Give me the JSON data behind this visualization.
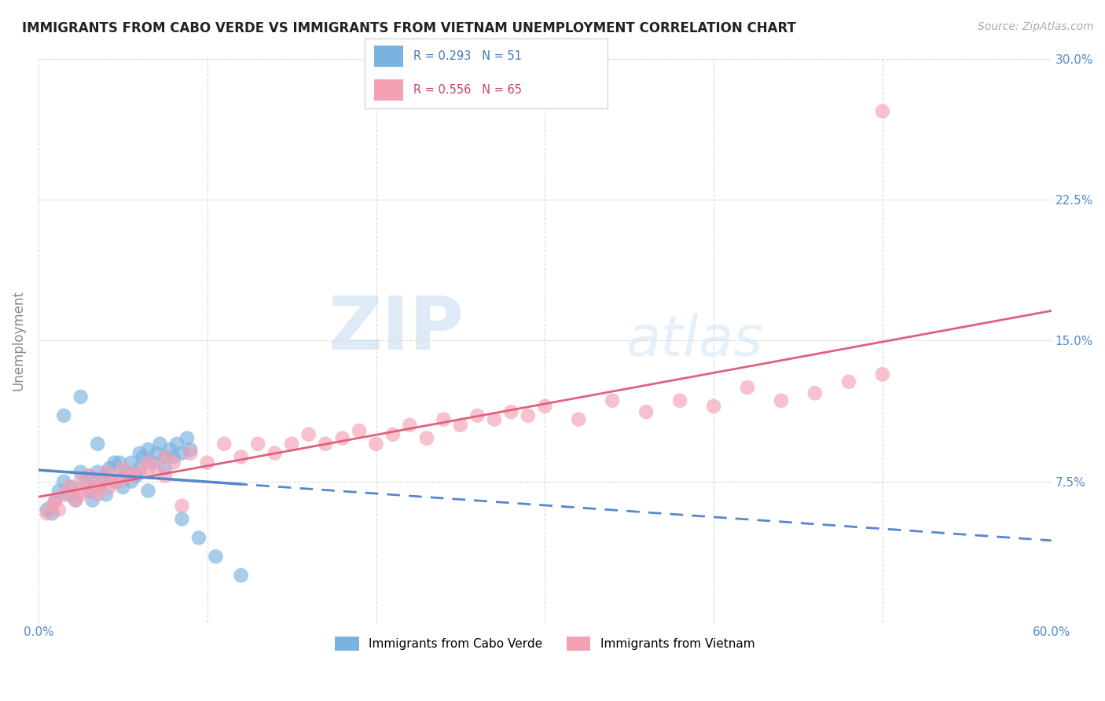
{
  "title": "IMMIGRANTS FROM CABO VERDE VS IMMIGRANTS FROM VIETNAM UNEMPLOYMENT CORRELATION CHART",
  "source_text": "Source: ZipAtlas.com",
  "ylabel": "Unemployment",
  "x_min": 0.0,
  "x_max": 0.6,
  "y_min": 0.0,
  "y_max": 0.3,
  "x_ticks": [
    0.0,
    0.1,
    0.2,
    0.3,
    0.4,
    0.5,
    0.6
  ],
  "x_tick_labels": [
    "0.0%",
    "",
    "",
    "",
    "",
    "",
    "60.0%"
  ],
  "y_ticks": [
    0.0,
    0.075,
    0.15,
    0.225,
    0.3
  ],
  "y_tick_labels_right": [
    "",
    "7.5%",
    "15.0%",
    "22.5%",
    "30.0%"
  ],
  "cabo_verde_color": "#7ab3e0",
  "vietnam_color": "#f4a0b5",
  "cabo_verde_line_color": "#5588cc",
  "vietnam_line_color": "#e06080",
  "cabo_verde_R": 0.293,
  "cabo_verde_N": 51,
  "vietnam_R": 0.556,
  "vietnam_N": 65,
  "legend_label_cabo": "Immigrants from Cabo Verde",
  "legend_label_vietnam": "Immigrants from Vietnam",
  "watermark_zip": "ZIP",
  "watermark_atlas": "atlas",
  "grid_color": "#cccccc",
  "background_color": "#ffffff",
  "tick_label_color": "#5588cc",
  "cabo_verde_scatter_x": [
    0.005,
    0.008,
    0.01,
    0.012,
    0.015,
    0.018,
    0.02,
    0.022,
    0.025,
    0.028,
    0.03,
    0.03,
    0.032,
    0.035,
    0.035,
    0.038,
    0.04,
    0.04,
    0.042,
    0.045,
    0.048,
    0.05,
    0.05,
    0.052,
    0.055,
    0.058,
    0.06,
    0.06,
    0.062,
    0.065,
    0.068,
    0.07,
    0.072,
    0.075,
    0.078,
    0.08,
    0.082,
    0.085,
    0.088,
    0.09,
    0.015,
    0.025,
    0.035,
    0.045,
    0.055,
    0.065,
    0.075,
    0.085,
    0.095,
    0.105,
    0.12
  ],
  "cabo_verde_scatter_y": [
    0.06,
    0.058,
    0.065,
    0.07,
    0.075,
    0.068,
    0.072,
    0.065,
    0.08,
    0.075,
    0.078,
    0.07,
    0.065,
    0.072,
    0.08,
    0.075,
    0.068,
    0.078,
    0.082,
    0.075,
    0.085,
    0.078,
    0.072,
    0.08,
    0.085,
    0.078,
    0.09,
    0.082,
    0.088,
    0.092,
    0.085,
    0.09,
    0.095,
    0.088,
    0.092,
    0.088,
    0.095,
    0.09,
    0.098,
    0.092,
    0.11,
    0.12,
    0.095,
    0.085,
    0.075,
    0.07,
    0.082,
    0.055,
    0.045,
    0.035,
    0.025
  ],
  "vietnam_scatter_x": [
    0.005,
    0.008,
    0.01,
    0.012,
    0.015,
    0.018,
    0.02,
    0.022,
    0.025,
    0.028,
    0.03,
    0.032,
    0.035,
    0.038,
    0.04,
    0.042,
    0.045,
    0.048,
    0.05,
    0.055,
    0.06,
    0.065,
    0.07,
    0.075,
    0.08,
    0.09,
    0.1,
    0.11,
    0.12,
    0.13,
    0.14,
    0.15,
    0.16,
    0.17,
    0.18,
    0.19,
    0.2,
    0.21,
    0.22,
    0.23,
    0.24,
    0.25,
    0.26,
    0.27,
    0.28,
    0.29,
    0.3,
    0.32,
    0.34,
    0.36,
    0.38,
    0.4,
    0.42,
    0.44,
    0.46,
    0.48,
    0.5,
    0.025,
    0.035,
    0.045,
    0.055,
    0.065,
    0.075,
    0.085,
    0.5
  ],
  "vietnam_scatter_y": [
    0.058,
    0.062,
    0.065,
    0.06,
    0.068,
    0.072,
    0.07,
    0.065,
    0.075,
    0.07,
    0.078,
    0.072,
    0.068,
    0.075,
    0.08,
    0.072,
    0.078,
    0.075,
    0.082,
    0.078,
    0.08,
    0.085,
    0.082,
    0.088,
    0.085,
    0.09,
    0.085,
    0.095,
    0.088,
    0.095,
    0.09,
    0.095,
    0.1,
    0.095,
    0.098,
    0.102,
    0.095,
    0.1,
    0.105,
    0.098,
    0.108,
    0.105,
    0.11,
    0.108,
    0.112,
    0.11,
    0.115,
    0.108,
    0.118,
    0.112,
    0.118,
    0.115,
    0.125,
    0.118,
    0.122,
    0.128,
    0.132,
    0.068,
    0.072,
    0.075,
    0.078,
    0.082,
    0.078,
    0.062,
    0.272
  ]
}
